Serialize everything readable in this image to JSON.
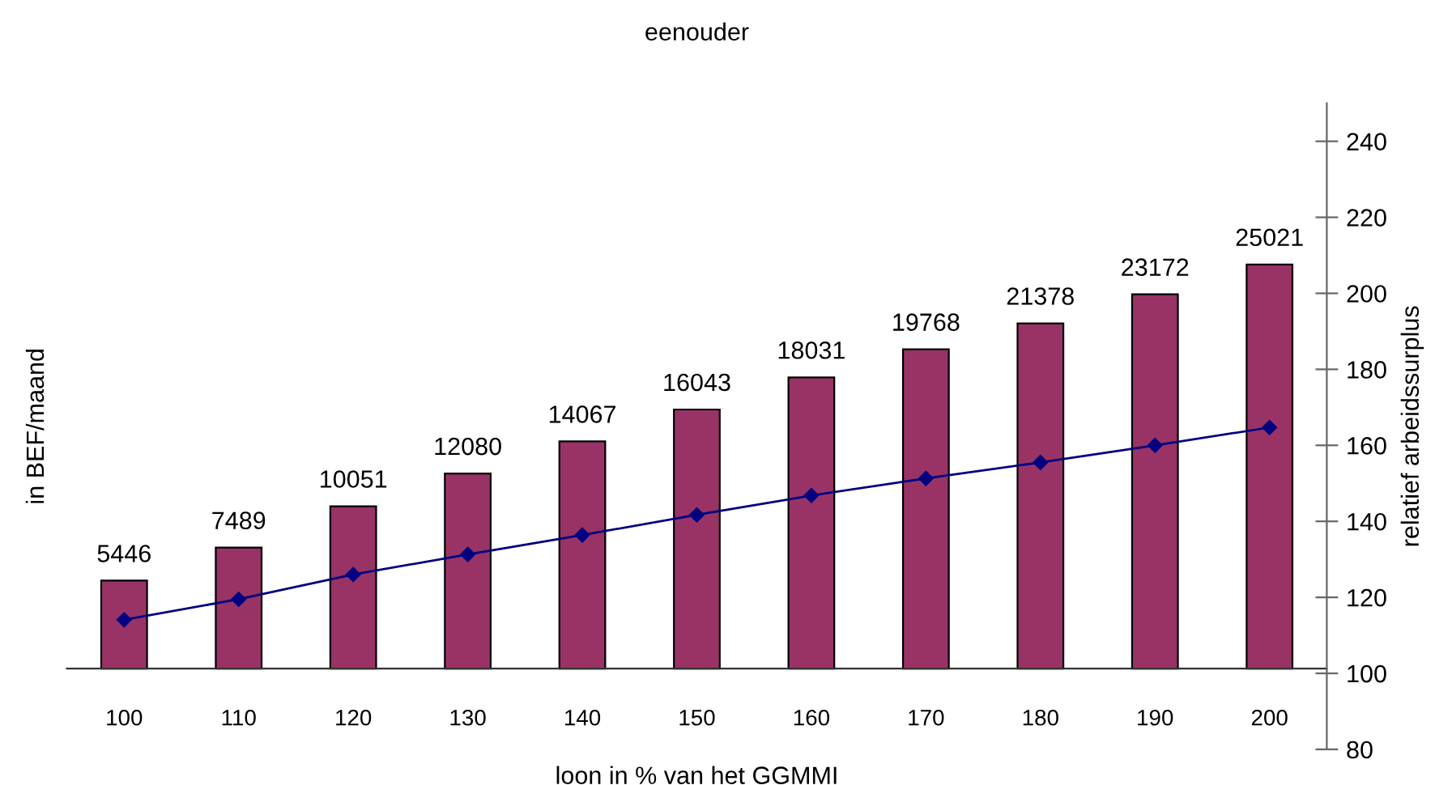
{
  "chart_data": {
    "type": "bar",
    "title": "eenouder",
    "xlabel": "loon in % van het GGMMI",
    "ylabel": "in BEF/maand",
    "y2label": "relatief arbeidssurplus",
    "categories": [
      "100",
      "110",
      "120",
      "130",
      "140",
      "150",
      "160",
      "170",
      "180",
      "190",
      "200"
    ],
    "series": [
      {
        "color": "#993366",
        "values": [
          5446,
          7489,
          10051,
          12080,
          14067,
          16043,
          18031,
          19768,
          21378,
          23172,
          25021
        ],
        "value_labels": [
          "5446",
          "7489",
          "10051",
          "12080",
          "14067",
          "16043",
          "18031",
          "19768",
          "21378",
          "23172",
          "25021"
        ]
      },
      {
        "type": "line",
        "axis": "y2",
        "color": "#000080",
        "marker": "diamond",
        "line_style": "solid",
        "values": [
          114.1,
          119.5,
          126.0,
          131.3,
          136.4,
          141.7,
          146.8,
          151.3,
          155.5,
          160.0,
          164.7
        ]
      }
    ],
    "ylim": [
      -5000,
      35000
    ],
    "y2lim": [
      80,
      250
    ],
    "y2ticks": [
      80,
      100,
      120,
      140,
      160,
      180,
      200,
      220,
      240
    ],
    "grid": false,
    "legend": false
  }
}
